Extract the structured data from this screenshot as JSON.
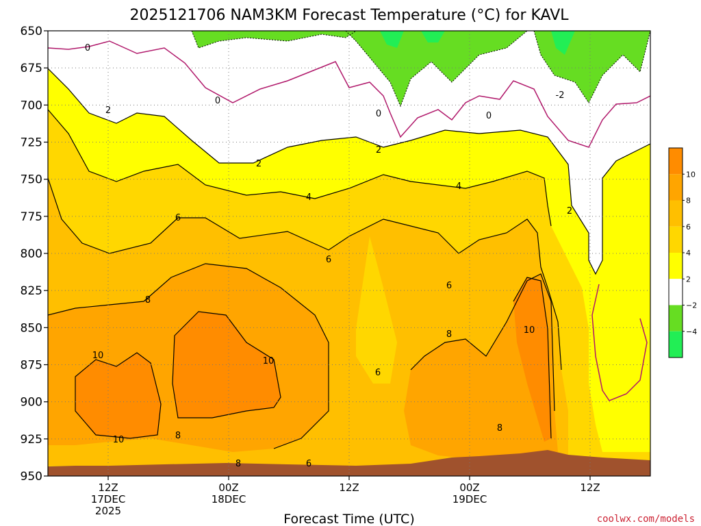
{
  "chart_data": {
    "type": "heatmap",
    "title": "2025121706 NAM3KM Forecast Temperature (°C) for KAVL",
    "xlabel": "Forecast Time (UTC)",
    "ylabel": "",
    "y_ticks": [
      "650",
      "675",
      "700",
      "725",
      "750",
      "775",
      "800",
      "825",
      "850",
      "875",
      "900",
      "925",
      "950"
    ],
    "ylim": [
      650,
      950
    ],
    "y_scale": "pressure (hPa), increasing downward",
    "x_ticks": [
      {
        "line1": "12Z",
        "line2": "17DEC",
        "line3": "2025"
      },
      {
        "line1": "00Z",
        "line2": "18DEC",
        "line3": ""
      },
      {
        "line1": "12Z",
        "line2": "",
        "line3": ""
      },
      {
        "line1": "00Z",
        "line2": "19DEC",
        "line3": ""
      },
      {
        "line1": "12Z",
        "line2": "",
        "line3": ""
      }
    ],
    "x_tick_hours": [
      6,
      18,
      30,
      42,
      54
    ],
    "xlim_hours": [
      0,
      60
    ],
    "grid": true,
    "colorbar": {
      "ticks": [
        "10",
        "8",
        "6",
        "4",
        "2",
        "−2",
        "−4"
      ],
      "levels": [
        {
          "range": "10 to 12",
          "color": "#ff8c00"
        },
        {
          "range": "8 to 10",
          "color": "#ffa500"
        },
        {
          "range": "6 to 8",
          "color": "#ffbf00"
        },
        {
          "range": "4 to 6",
          "color": "#ffd700"
        },
        {
          "range": "2 to 4",
          "color": "#ffff00"
        },
        {
          "range": "-2 to 2",
          "color": "#ffffff"
        },
        {
          "range": "-4 to -2",
          "color": "#66dd22"
        },
        {
          "range": "-6 to -4",
          "color": "#22ee55"
        }
      ]
    },
    "contour_labels": [
      "0",
      "0",
      "0",
      "0",
      "-2",
      "2",
      "2",
      "2",
      "2",
      "4",
      "4",
      "6",
      "6",
      "6",
      "6",
      "8",
      "8",
      "8",
      "8",
      "8",
      "6",
      "10",
      "10",
      "10",
      "10"
    ]
  },
  "credit": "coolwx.com/models"
}
